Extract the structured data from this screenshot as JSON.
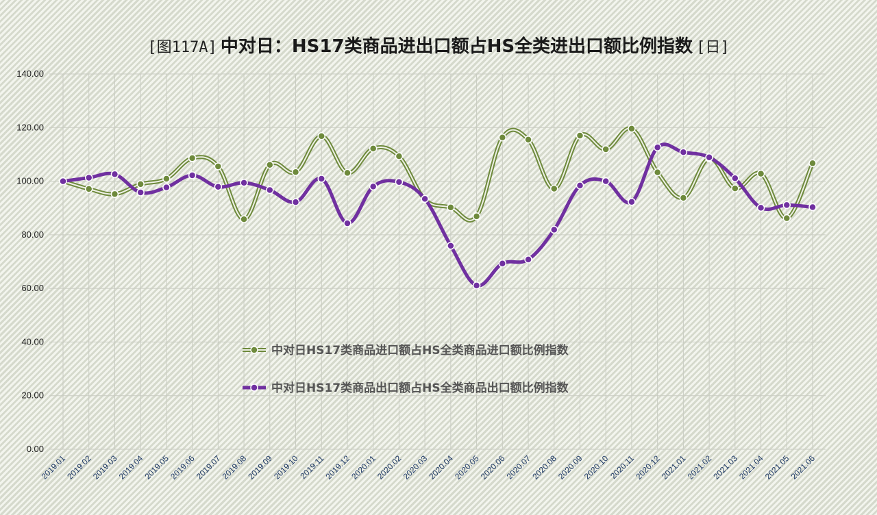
{
  "chart_data": {
    "type": "line",
    "title_prefix": "[图117A]",
    "title": "中对日：HS17类商品进出口额占HS全类进出口额比例指数",
    "title_suffix": "[日]",
    "xlabel": "",
    "ylabel": "",
    "ylim": [
      0,
      140
    ],
    "yticks": [
      "0.00",
      "20.00",
      "40.00",
      "60.00",
      "80.00",
      "100.00",
      "120.00",
      "140.00"
    ],
    "grid": true,
    "legend_position": "center",
    "categories": [
      "2019.01",
      "2019.02",
      "2019.03",
      "2019.04",
      "2019.05",
      "2019.06",
      "2019.07",
      "2019.08",
      "2019.09",
      "2019.10",
      "2019.11",
      "2019.12",
      "2020.01",
      "2020.02",
      "2020.03",
      "2020.04",
      "2020.05",
      "2020.06",
      "2020.07",
      "2020.08",
      "2020.09",
      "2020.10",
      "2020.11",
      "2020.12",
      "2021.01",
      "2021.02",
      "2021.03",
      "2021.04",
      "2021.05",
      "2021.06"
    ],
    "series": [
      {
        "name": "中对日HS17类商品进口额占HS全类商品进口额比例指数",
        "color": "#6e8a3c",
        "style": "double-line",
        "values": [
          100,
          97.1,
          95.2,
          98.9,
          100.9,
          108.6,
          105.5,
          85.8,
          106.1,
          103.4,
          116.8,
          103.1,
          112.2,
          109.3,
          93.2,
          90.2,
          86.9,
          116.3,
          115.5,
          97.2,
          117.0,
          111.9,
          119.6,
          103.3,
          93.8,
          108.5,
          97.3,
          102.8,
          86.2,
          106.7
        ]
      },
      {
        "name": "中对日HS17类商品出口额占HS全类商品出口额比例指数",
        "color": "#7030a0",
        "style": "solid",
        "values": [
          100,
          101.3,
          102.6,
          95.8,
          97.7,
          102.2,
          97.9,
          99.4,
          96.7,
          92.2,
          100.9,
          84.3,
          98.0,
          99.7,
          93.4,
          75.9,
          61.1,
          69.3,
          70.8,
          81.9,
          98.4,
          100.0,
          92.3,
          112.6,
          110.8,
          108.9,
          101.1,
          90.1,
          91.1,
          90.3
        ]
      }
    ]
  }
}
